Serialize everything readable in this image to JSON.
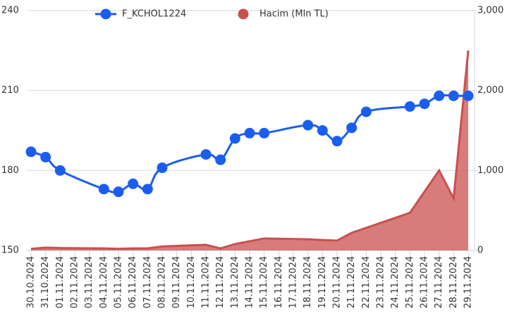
{
  "chart_data": {
    "type": "line_area",
    "categories": [
      "30.10.2024",
      "31.10.2024",
      "01.11.2024",
      "02.11.2024",
      "03.11.2024",
      "04.11.2024",
      "05.11.2024",
      "06.11.2024",
      "07.11.2024",
      "08.11.2024",
      "09.11.2024",
      "10.11.2024",
      "11.11.2024",
      "12.11.2024",
      "13.11.2024",
      "14.11.2024",
      "15.11.2024",
      "16.11.2024",
      "17.11.2024",
      "18.11.2024",
      "19.11.2024",
      "20.11.2024",
      "21.11.2024",
      "22.11.2024",
      "23.11.2024",
      "24.11.2024",
      "25.11.2024",
      "26.11.2024",
      "27.11.2024",
      "28.11.2024",
      "29.11.2024"
    ],
    "series": [
      {
        "name": "F_KCHOL1224",
        "color": "#1a5ef0",
        "type": "line",
        "values": [
          187,
          185,
          180,
          null,
          null,
          173,
          172,
          175,
          173,
          181,
          null,
          null,
          186,
          184,
          192,
          194,
          194,
          null,
          null,
          197,
          195,
          191,
          196,
          202,
          null,
          null,
          204,
          205,
          208,
          208,
          208
        ]
      },
      {
        "name": "Hacim (Mln TL)",
        "color": "#c9504f",
        "type": "area",
        "axis": "y2",
        "values": [
          20,
          35,
          30,
          null,
          null,
          25,
          20,
          25,
          25,
          50,
          null,
          null,
          70,
          25,
          80,
          115,
          150,
          null,
          null,
          140,
          130,
          123,
          220,
          null,
          null,
          null,
          470,
          null,
          1000,
          650,
          2500
        ]
      }
    ],
    "ylim": [
      150,
      240
    ],
    "yticks": [
      150,
      180,
      210,
      240
    ],
    "y2lim": [
      0,
      3000
    ],
    "y2ticks": [
      0,
      {
        "value": 1000,
        "label": "1,000"
      },
      {
        "value": 2000,
        "label": "2,000"
      },
      {
        "value": 3000,
        "label": "3,000"
      }
    ],
    "grid": true,
    "connect_nulls": true
  }
}
